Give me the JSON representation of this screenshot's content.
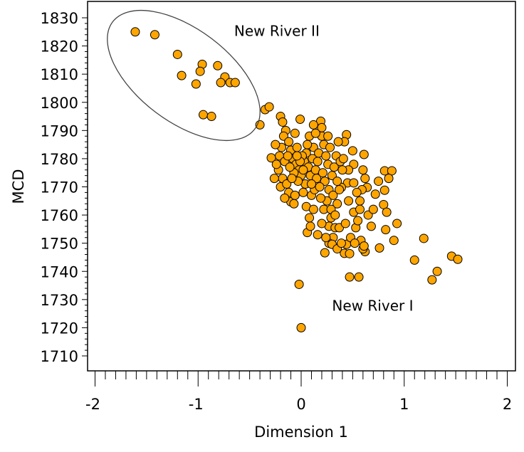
{
  "chart_data": {
    "type": "scatter",
    "title": "",
    "xlabel": "Dimension 1",
    "ylabel": "MCD",
    "xlim": [
      -2,
      2
    ],
    "ylim": [
      1710,
      1830
    ],
    "xticks": [
      "-2",
      "-1",
      "0",
      "1",
      "2"
    ],
    "yticks": [
      "1710",
      "1720",
      "1730",
      "1740",
      "1750",
      "1760",
      "1770",
      "1780",
      "1790",
      "1800",
      "1810",
      "1820",
      "1830"
    ],
    "grid": false,
    "legend": "none",
    "marker_color": "#FFA500",
    "marker_edge": "#000000",
    "annotations": [
      {
        "text": "New River II",
        "x": -0.65,
        "y": 1823.5
      },
      {
        "text": "New River I",
        "x": 0.3,
        "y": 1726
      }
    ],
    "group_ellipse": {
      "label": "New River II"
    },
    "points": [
      [
        -1.61,
        1825
      ],
      [
        -1.42,
        1824
      ],
      [
        -1.2,
        1817
      ],
      [
        -0.96,
        1813.5
      ],
      [
        -0.98,
        1811
      ],
      [
        -0.81,
        1813
      ],
      [
        -1.16,
        1809.5
      ],
      [
        -0.74,
        1809
      ],
      [
        -0.78,
        1807
      ],
      [
        -0.69,
        1807
      ],
      [
        -0.64,
        1807
      ],
      [
        -1.02,
        1806.5
      ],
      [
        -0.95,
        1795.6
      ],
      [
        -0.87,
        1795
      ],
      [
        -0.35,
        1797.4
      ],
      [
        -0.31,
        1798.4
      ],
      [
        -0.4,
        1792
      ],
      [
        -0.02,
        1735.4
      ],
      [
        0.0,
        1720
      ],
      [
        0.47,
        1738
      ],
      [
        0.56,
        1738
      ],
      [
        1.1,
        1744
      ],
      [
        1.19,
        1751.7
      ],
      [
        1.27,
        1737
      ],
      [
        1.32,
        1740
      ],
      [
        1.46,
        1745.4
      ],
      [
        1.52,
        1744.3
      ],
      [
        0.93,
        1757
      ],
      [
        0.82,
        1754.8
      ],
      [
        0.9,
        1751
      ],
      [
        0.76,
        1748.3
      ],
      [
        0.81,
        1775.7
      ],
      [
        0.88,
        1775.7
      ],
      [
        0.85,
        1773
      ],
      [
        0.81,
        1768.8
      ],
      [
        0.8,
        1763.7
      ],
      [
        0.83,
        1761
      ],
      [
        0.75,
        1772
      ],
      [
        0.72,
        1767.4
      ],
      [
        0.61,
        1781.5
      ],
      [
        0.6,
        1776
      ],
      [
        -0.01,
        1794
      ],
      [
        0.19,
        1793.3
      ],
      [
        -0.29,
        1780.3
      ],
      [
        -0.1,
        1764.7
      ],
      [
        0.08,
        1759
      ],
      [
        0.06,
        1753.8
      ],
      [
        0.23,
        1746.6
      ],
      [
        0.42,
        1746.4
      ],
      [
        0.47,
        1746.3
      ],
      [
        0.58,
        1751
      ],
      [
        0.62,
        1747
      ],
      [
        0.6,
        1748
      ],
      [
        0.61,
        1749
      ],
      [
        0.35,
        1764
      ],
      [
        0.51,
        1761
      ],
      [
        0.44,
        1788.5
      ],
      [
        0.42,
        1786
      ],
      [
        0.5,
        1782.8
      ],
      [
        0.51,
        1778
      ],
      [
        0.46,
        1776
      ],
      [
        0.45,
        1771.4
      ],
      [
        0.51,
        1771.4
      ],
      [
        0.39,
        1769.8
      ],
      [
        0.64,
        1769.8
      ],
      [
        0.59,
        1769
      ],
      [
        0.57,
        1765
      ],
      [
        0.29,
        1759
      ],
      [
        0.27,
        1756
      ],
      [
        0.33,
        1755.5
      ],
      [
        0.37,
        1755.5
      ],
      [
        0.43,
        1757
      ],
      [
        0.53,
        1755.5
      ],
      [
        0.16,
        1753
      ],
      [
        0.31,
        1752
      ],
      [
        0.27,
        1750
      ],
      [
        0.44,
        1749.6
      ],
      [
        0.3,
        1749.6
      ],
      [
        -0.2,
        1795
      ],
      [
        -0.18,
        1793
      ],
      [
        -0.15,
        1790
      ],
      [
        -0.17,
        1788
      ],
      [
        -0.12,
        1786
      ],
      [
        -0.19,
        1784
      ],
      [
        -0.21,
        1781
      ],
      [
        -0.16,
        1779
      ],
      [
        -0.22,
        1776
      ],
      [
        -0.18,
        1773
      ],
      [
        -0.2,
        1770
      ],
      [
        -0.14,
        1771
      ],
      [
        -0.12,
        1768
      ],
      [
        -0.06,
        1767
      ],
      [
        0.02,
        1768
      ],
      [
        0.1,
        1767
      ],
      [
        0.13,
        1769
      ],
      [
        -0.1,
        1783
      ],
      [
        -0.08,
        1780
      ],
      [
        -0.05,
        1778
      ],
      [
        -0.02,
        1776
      ],
      [
        0.0,
        1774
      ],
      [
        0.03,
        1779
      ],
      [
        0.05,
        1782
      ],
      [
        0.07,
        1777
      ],
      [
        0.09,
        1774
      ],
      [
        0.11,
        1780
      ],
      [
        0.12,
        1784
      ],
      [
        -0.04,
        1784
      ],
      [
        -0.07,
        1775
      ],
      [
        -0.11,
        1777
      ],
      [
        -0.13,
        1781
      ],
      [
        0.01,
        1781
      ],
      [
        0.04,
        1771
      ],
      [
        -0.03,
        1772
      ],
      [
        0.06,
        1785
      ],
      [
        0.08,
        1788
      ],
      [
        -0.06,
        1789
      ],
      [
        0.14,
        1776
      ],
      [
        0.15,
        1773
      ],
      [
        0.16,
        1779
      ],
      [
        0.17,
        1782
      ],
      [
        -0.09,
        1773
      ],
      [
        -0.01,
        1779
      ],
      [
        0.02,
        1776
      ],
      [
        -0.04,
        1781
      ],
      [
        0.1,
        1771
      ],
      [
        0.2,
        1788
      ],
      [
        0.22,
        1785
      ],
      [
        0.24,
        1781
      ],
      [
        0.26,
        1778
      ],
      [
        0.21,
        1775
      ],
      [
        0.23,
        1772
      ],
      [
        0.27,
        1769
      ],
      [
        0.3,
        1774
      ],
      [
        0.32,
        1777
      ],
      [
        0.34,
        1781
      ],
      [
        0.28,
        1784
      ],
      [
        0.36,
        1786
      ],
      [
        0.38,
        1779
      ],
      [
        0.35,
        1772
      ],
      [
        0.31,
        1767
      ],
      [
        0.25,
        1765
      ],
      [
        0.22,
        1762
      ],
      [
        0.19,
        1766
      ],
      [
        0.18,
        1770
      ],
      [
        0.29,
        1762
      ],
      [
        0.33,
        1760
      ],
      [
        0.4,
        1776
      ],
      [
        0.41,
        1780
      ],
      [
        0.37,
        1769
      ],
      [
        0.26,
        1788
      ],
      [
        0.2,
        1791
      ],
      [
        0.14,
        1789
      ],
      [
        0.12,
        1792
      ],
      [
        -0.25,
        1785
      ],
      [
        -0.24,
        1778
      ],
      [
        -0.26,
        1773
      ],
      [
        -0.16,
        1766
      ],
      [
        -0.07,
        1764
      ],
      [
        0.05,
        1763
      ],
      [
        0.12,
        1762
      ],
      [
        0.09,
        1756
      ],
      [
        0.2,
        1757
      ],
      [
        0.24,
        1752
      ],
      [
        0.35,
        1748
      ],
      [
        0.39,
        1750
      ],
      [
        0.48,
        1752
      ],
      [
        0.52,
        1750
      ],
      [
        0.55,
        1758
      ],
      [
        0.46,
        1765
      ],
      [
        0.54,
        1768
      ],
      [
        0.62,
        1773
      ],
      [
        0.65,
        1760
      ],
      [
        0.7,
        1762
      ],
      [
        0.68,
        1756
      ],
      [
        0.57,
        1762
      ]
    ]
  }
}
